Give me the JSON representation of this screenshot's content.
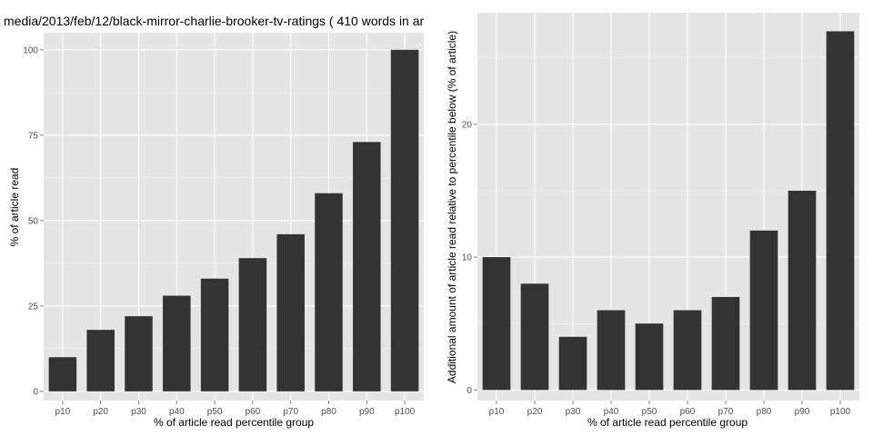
{
  "chart_data": [
    {
      "type": "bar",
      "title": "media/2013/feb/12/black-mirror-charlie-brooker-tv-ratings ( 410 words in ar",
      "xlabel": "% of article read percentile group",
      "ylabel": "% of article read",
      "categories": [
        "p10",
        "p20",
        "p30",
        "p40",
        "p50",
        "p60",
        "p70",
        "p80",
        "p90",
        "p100"
      ],
      "values": [
        10,
        18,
        22,
        28,
        33,
        39,
        46,
        58,
        73,
        100
      ],
      "ylim": [
        -2.7,
        105
      ],
      "yticks": [
        0,
        25,
        50,
        75,
        100
      ],
      "grid": true,
      "bar_color": "#333333",
      "panel_color": "#e5e5e5"
    },
    {
      "type": "bar",
      "title": "",
      "xlabel": "% of article read percentile group",
      "ylabel": "Additional amount of article read relative to percentile below (% of article)",
      "categories": [
        "p10",
        "p20",
        "p30",
        "p40",
        "p50",
        "p60",
        "p70",
        "p80",
        "p90",
        "p100"
      ],
      "values": [
        10,
        8,
        4,
        6,
        5,
        6,
        7,
        12,
        15,
        27
      ],
      "ylim": [
        -0.8,
        28.4
      ],
      "yticks": [
        0,
        10,
        20
      ],
      "grid": true,
      "bar_color": "#333333",
      "panel_color": "#e5e5e5"
    }
  ]
}
